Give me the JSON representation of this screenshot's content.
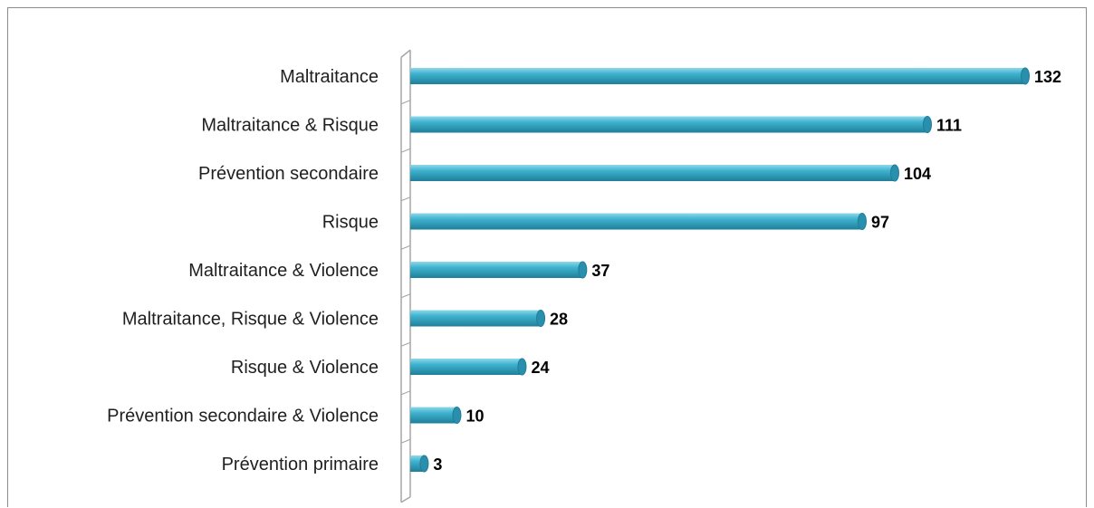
{
  "chart_data": {
    "type": "bar",
    "orientation": "horizontal",
    "title": "",
    "xlabel": "",
    "ylabel": "",
    "categories": [
      "Maltraitance",
      "Maltraitance & Risque",
      "Prévention secondaire",
      "Risque",
      "Maltraitance & Violence",
      "Maltraitance, Risque & Violence",
      "Risque & Violence",
      "Prévention secondaire & Violence",
      "Prévention primaire"
    ],
    "values": [
      132,
      111,
      104,
      97,
      37,
      28,
      24,
      10,
      3
    ],
    "xlim": [
      0,
      132
    ],
    "grid": false,
    "legend": "none",
    "data_labels": true,
    "colors": {
      "bar_fill": "#3fb3cf",
      "bar_light": "#8fd8ea",
      "bar_dark": "#1f7f9a",
      "bar_cap": "#2a8fac",
      "axis": "#a6a6a6",
      "label_text": "#1f1f1f",
      "value_text": "#000000",
      "frame": "#8c8c8c"
    }
  }
}
